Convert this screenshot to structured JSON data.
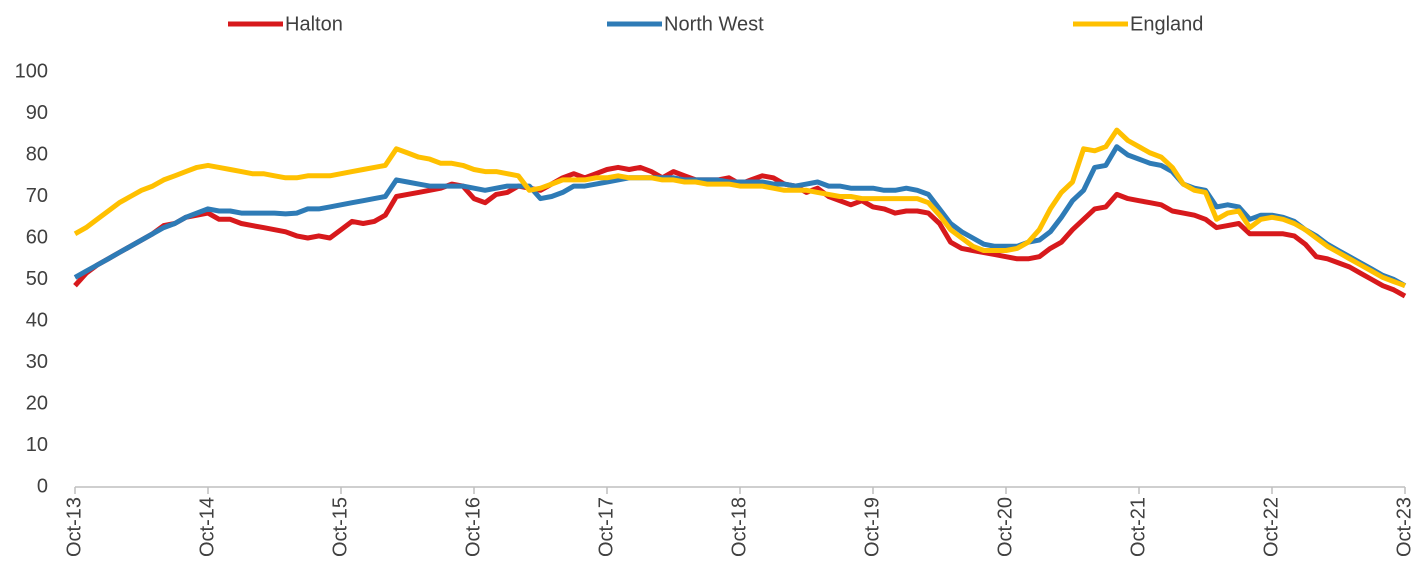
{
  "chart_data": {
    "type": "line",
    "categories": [
      "Oct-13",
      null,
      null,
      null,
      null,
      null,
      null,
      null,
      null,
      null,
      null,
      null,
      "Oct-14",
      null,
      null,
      null,
      null,
      null,
      null,
      null,
      null,
      null,
      null,
      null,
      "Oct-15",
      null,
      null,
      null,
      null,
      null,
      null,
      null,
      null,
      null,
      null,
      null,
      "Oct-16",
      null,
      null,
      null,
      null,
      null,
      null,
      null,
      null,
      null,
      null,
      null,
      "Oct-17",
      null,
      null,
      null,
      null,
      null,
      null,
      null,
      null,
      null,
      null,
      null,
      "Oct-18",
      null,
      null,
      null,
      null,
      null,
      null,
      null,
      null,
      null,
      null,
      null,
      "Oct-19",
      null,
      null,
      null,
      null,
      null,
      null,
      null,
      null,
      null,
      null,
      null,
      "Oct-20",
      null,
      null,
      null,
      null,
      null,
      null,
      null,
      null,
      null,
      null,
      null,
      "Oct-21",
      null,
      null,
      null,
      null,
      null,
      null,
      null,
      null,
      null,
      null,
      null,
      "Oct-22",
      null,
      null,
      null,
      null,
      null,
      null,
      null,
      null,
      null,
      null,
      null,
      "Oct-23"
    ],
    "series": [
      {
        "name": "Halton",
        "color": "#d7191c",
        "values": [
          48.5,
          51.5,
          53.5,
          55,
          56.5,
          58,
          59.5,
          61,
          63,
          63.5,
          65,
          65.5,
          66,
          64.5,
          64.5,
          63.5,
          63,
          62.5,
          62,
          61.5,
          60.5,
          60,
          60.5,
          60,
          62,
          64,
          63.5,
          64,
          65.5,
          70,
          70.5,
          71,
          71.5,
          72,
          73,
          72.5,
          69.5,
          68.5,
          70.5,
          71,
          72.5,
          72,
          71.5,
          73,
          74.5,
          75.5,
          74.5,
          75.5,
          76.5,
          77,
          76.5,
          77,
          76,
          74.5,
          76,
          75,
          74,
          74,
          74,
          74.5,
          73,
          74,
          75,
          74.5,
          73,
          72.5,
          71,
          72,
          70,
          69,
          68,
          69,
          67.5,
          67,
          66,
          66.5,
          66.5,
          66,
          63.5,
          59,
          57.5,
          57,
          56.5,
          56,
          55.5,
          55,
          55,
          55.5,
          57.5,
          59,
          62,
          64.5,
          67,
          67.5,
          70.5,
          69.5,
          69,
          68.5,
          68,
          66.5,
          66,
          65.5,
          64.5,
          62.5,
          63,
          63.5,
          61,
          61,
          61,
          61,
          60.5,
          58.5,
          55.5,
          55,
          54,
          53,
          51.5,
          50,
          48.5,
          47.5,
          46
        ]
      },
      {
        "name": "North West",
        "color": "#2e7bb6",
        "values": [
          50.5,
          52,
          53.5,
          55,
          56.5,
          58,
          59.5,
          61,
          62.5,
          63.5,
          65,
          66,
          67,
          66.5,
          66.5,
          66,
          66,
          66,
          66,
          65.8,
          66,
          67,
          67,
          67.5,
          68,
          68.5,
          69,
          69.5,
          70,
          74,
          73.5,
          73,
          72.5,
          72.5,
          72.5,
          72.5,
          72,
          71.5,
          72,
          72.5,
          72.5,
          72.5,
          69.5,
          70,
          71,
          72.5,
          72.5,
          73,
          73.5,
          74,
          74.5,
          74.5,
          74.5,
          74.5,
          74.5,
          74,
          74,
          74,
          74,
          73.5,
          73.5,
          73.5,
          73.5,
          73,
          73,
          72.5,
          73,
          73.5,
          72.5,
          72.5,
          72,
          72,
          72,
          71.5,
          71.5,
          72,
          71.5,
          70.5,
          67,
          63.5,
          61.5,
          60,
          58.5,
          58,
          58,
          58,
          59,
          59.5,
          61.5,
          65,
          69,
          71.5,
          77,
          77.5,
          82,
          80,
          79,
          78,
          77.5,
          76,
          73,
          72,
          71.5,
          67.5,
          68,
          67.5,
          64.5,
          65.5,
          65.5,
          65,
          64,
          62,
          60.5,
          58.5,
          57,
          55.5,
          54,
          52.5,
          51,
          50,
          48.5
        ]
      },
      {
        "name": "England",
        "color": "#ffc000",
        "values": [
          61,
          62.5,
          64.5,
          66.5,
          68.5,
          70,
          71.5,
          72.5,
          74,
          75,
          76,
          77,
          77.5,
          77,
          76.5,
          76,
          75.5,
          75.5,
          75,
          74.5,
          74.5,
          75,
          75,
          75,
          75.5,
          76,
          76.5,
          77,
          77.5,
          81.5,
          80.5,
          79.5,
          79,
          78,
          78,
          77.5,
          76.5,
          76,
          76,
          75.5,
          75,
          71.5,
          72,
          73,
          74,
          74,
          74,
          74.5,
          74.5,
          75,
          74.5,
          74.5,
          74.5,
          74,
          74,
          73.5,
          73.5,
          73,
          73,
          73,
          72.5,
          72.5,
          72.5,
          72,
          71.5,
          71.5,
          71.5,
          71,
          70.5,
          70,
          70,
          69.5,
          69.5,
          69.5,
          69.5,
          69.5,
          69.5,
          68.5,
          65.5,
          62,
          60,
          58,
          57,
          57,
          57,
          57.5,
          59,
          62,
          67,
          71,
          73.5,
          81.5,
          81,
          82,
          86,
          83.5,
          82,
          80.5,
          79.5,
          77,
          73,
          71.5,
          71,
          64.5,
          66,
          66.5,
          62.5,
          64.5,
          65,
          64.5,
          63.5,
          62,
          60,
          58,
          56.5,
          55,
          53.5,
          52,
          50.5,
          49.5,
          48.5
        ]
      }
    ],
    "ylim": [
      0,
      100
    ],
    "yticks": [
      0,
      10,
      20,
      30,
      40,
      50,
      60,
      70,
      80,
      90,
      100
    ],
    "grid": false,
    "legend": "top"
  }
}
